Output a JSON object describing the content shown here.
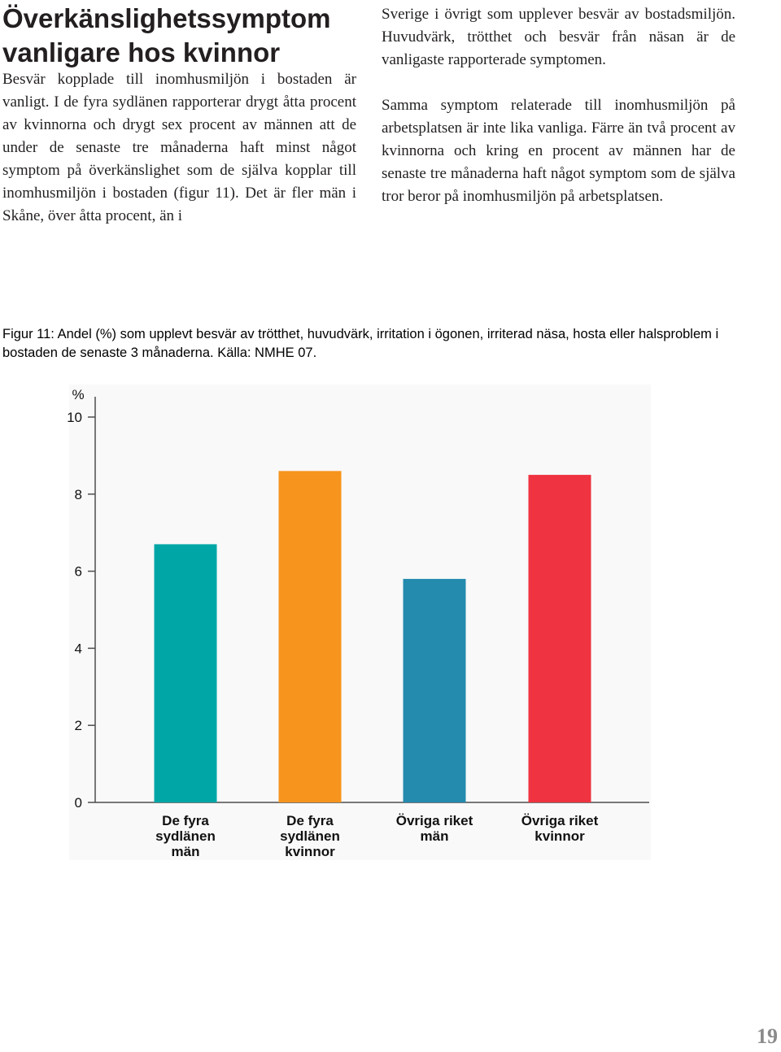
{
  "article": {
    "heading": "Överkänslighetssymptom vanligare hos kvinnor",
    "left_column": "Besvär kopplade till inomhusmiljön i bostaden är vanligt. I de fyra sydlänen rapporterar drygt åtta procent av kvinnorna och drygt sex procent av männen att de under de senaste tre månaderna haft minst något symptom på överkänslighet som de själva kopplar till inomhusmiljön i bostaden (figur 11). Det är fler män i Skåne, över åtta procent, än i",
    "right_paragraph_1": "Sverige i övrigt som upplever besvär av bostadsmil­jön. Huvudvärk, trötthet och besvär från näsan är de vanligaste rapporterade symptomen.",
    "right_paragraph_2": "Samma symptom relaterade till inomhusmiljön på arbetsplatsen är inte lika vanliga. Färre än två pro­cent av kvinnorna och kring en procent av männen har de senaste tre månaderna haft något symptom som de själva tror beror på inomhusmiljön på ar­betsplatsen."
  },
  "figure": {
    "caption": "Figur 11: Andel (%) som upplevt besvär av trötthet, huvudvärk, irritation i ögonen, irriterad näsa, hosta eller halsproblem i bostaden de senaste 3 månaderna. Källa: NMHE 07."
  },
  "chart_data": {
    "type": "bar",
    "ylabel": "%",
    "ylim": [
      0,
      10
    ],
    "yticks": [
      "0",
      "2",
      "4",
      "6",
      "8",
      "10"
    ],
    "categories": [
      [
        "De fyra",
        "sydlänen",
        "män"
      ],
      [
        "De fyra",
        "sydlänen",
        "kvinnor"
      ],
      [
        "Övriga riket",
        "män"
      ],
      [
        "Övriga riket",
        "kvinnor"
      ]
    ],
    "values": [
      6.7,
      8.6,
      5.8,
      8.5
    ],
    "colors": [
      "#00a6a6",
      "#f7941d",
      "#248aae",
      "#ef3340"
    ],
    "grid": false,
    "legend": "none"
  },
  "page_number": "19"
}
